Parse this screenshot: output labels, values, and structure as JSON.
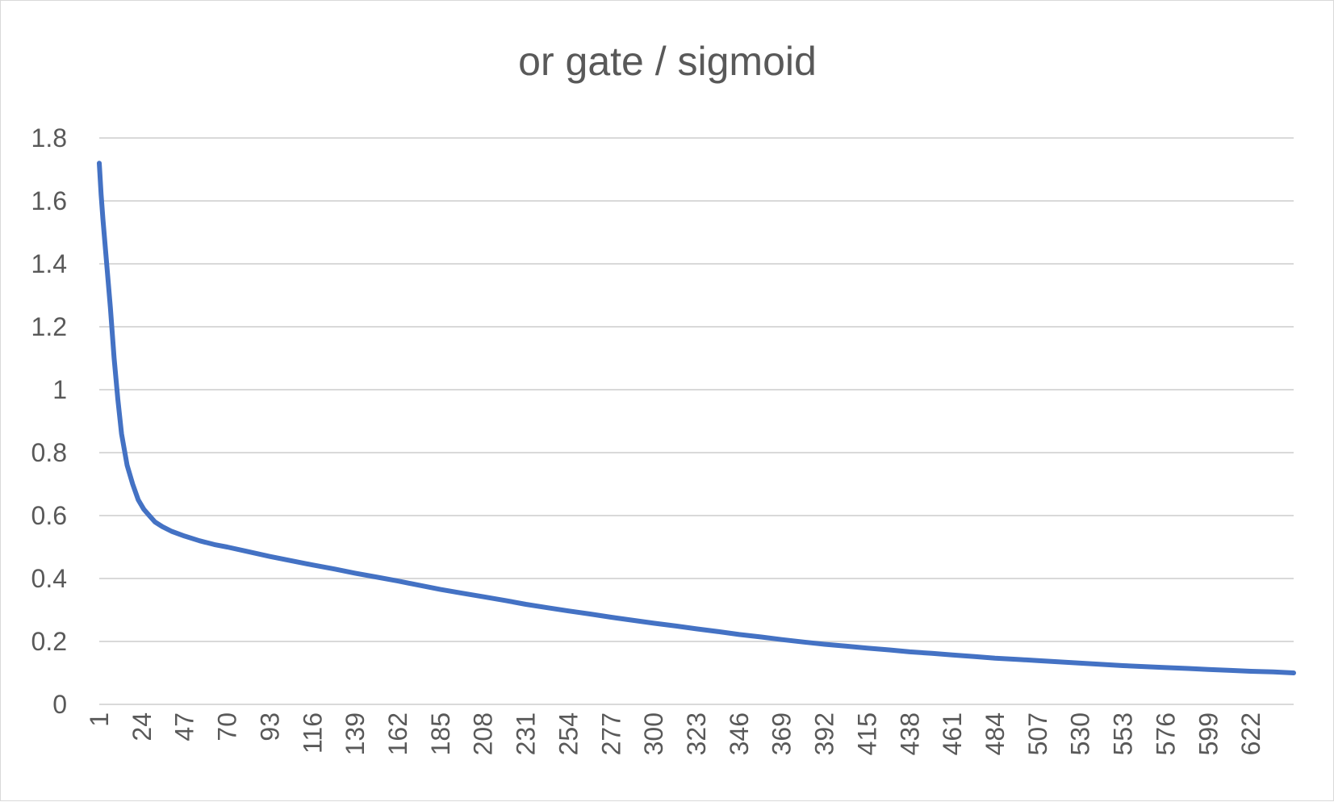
{
  "chart_data": {
    "type": "line",
    "title": "or gate / sigmoid",
    "xlabel": "",
    "ylabel": "",
    "ylim": [
      0,
      1.8
    ],
    "y_ticks": [
      "0",
      "0.2",
      "0.4",
      "0.6",
      "0.8",
      "1",
      "1.2",
      "1.4",
      "1.6",
      "1.8"
    ],
    "x_ticks": [
      "1",
      "24",
      "47",
      "70",
      "93",
      "116",
      "139",
      "162",
      "185",
      "208",
      "231",
      "254",
      "277",
      "300",
      "323",
      "346",
      "369",
      "392",
      "415",
      "438",
      "461",
      "484",
      "507",
      "530",
      "553",
      "576",
      "599",
      "622"
    ],
    "x_range": [
      1,
      645
    ],
    "grid": true,
    "legend": "none",
    "color": "#4472c4",
    "series": [
      {
        "x": [
          1,
          2,
          3,
          5,
          7,
          9,
          11,
          13,
          16,
          19,
          22,
          25,
          28,
          31,
          35,
          40,
          47,
          55,
          63,
          70,
          80,
          93,
          105,
          116,
          128,
          139,
          150,
          162,
          174,
          185,
          197,
          208,
          220,
          231,
          243,
          254,
          266,
          277,
          289,
          300,
          312,
          323,
          335,
          346,
          358,
          369,
          381,
          392,
          404,
          415,
          427,
          438,
          450,
          461,
          473,
          484,
          496,
          507,
          519,
          530,
          542,
          553,
          565,
          576,
          588,
          599,
          611,
          622,
          634,
          645
        ],
        "y": [
          1.72,
          1.62,
          1.54,
          1.4,
          1.26,
          1.1,
          0.97,
          0.86,
          0.76,
          0.7,
          0.65,
          0.62,
          0.6,
          0.58,
          0.565,
          0.55,
          0.535,
          0.52,
          0.508,
          0.5,
          0.487,
          0.47,
          0.456,
          0.443,
          0.43,
          0.417,
          0.405,
          0.392,
          0.378,
          0.365,
          0.353,
          0.342,
          0.33,
          0.318,
          0.307,
          0.297,
          0.287,
          0.277,
          0.267,
          0.258,
          0.249,
          0.24,
          0.231,
          0.222,
          0.214,
          0.206,
          0.198,
          0.191,
          0.185,
          0.179,
          0.173,
          0.167,
          0.162,
          0.157,
          0.152,
          0.147,
          0.143,
          0.139,
          0.135,
          0.131,
          0.127,
          0.123,
          0.12,
          0.117,
          0.114,
          0.111,
          0.108,
          0.105,
          0.103,
          0.1
        ]
      }
    ]
  }
}
